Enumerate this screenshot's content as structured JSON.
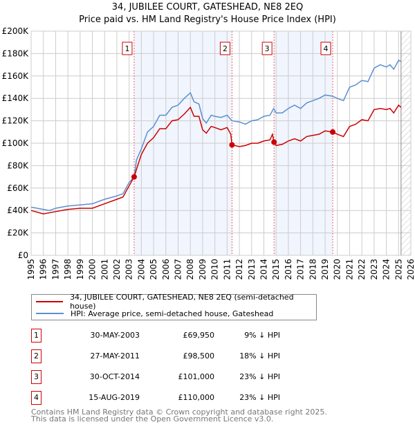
{
  "chart_data": {
    "type": "line",
    "title": "34, JUBILEE COURT, GATESHEAD, NE8 2EQ",
    "subtitle": "Price paid vs. HM Land Registry's House Price Index (HPI)",
    "xlim": [
      1995,
      2026
    ],
    "ylim": [
      0,
      200000
    ],
    "yticks": [
      0,
      20000,
      40000,
      60000,
      80000,
      100000,
      120000,
      140000,
      160000,
      180000,
      200000
    ],
    "ytick_labels": [
      "£0",
      "£20K",
      "£40K",
      "£60K",
      "£80K",
      "£100K",
      "£120K",
      "£140K",
      "£160K",
      "£180K",
      "£200K"
    ],
    "xticks": [
      "1995",
      "1996",
      "1997",
      "1998",
      "1999",
      "2000",
      "2001",
      "2002",
      "2003",
      "2004",
      "2005",
      "2006",
      "2007",
      "2008",
      "2009",
      "2010",
      "2011",
      "2012",
      "2013",
      "2014",
      "2015",
      "2016",
      "2017",
      "2018",
      "2019",
      "2020",
      "2021",
      "2022",
      "2023",
      "2024",
      "2025",
      "2026"
    ],
    "grid": true,
    "forecast_from": 2025.2,
    "shaded_ranges": [
      [
        2003.41,
        2011.4
      ],
      [
        2014.83,
        2019.62
      ]
    ],
    "series": [
      {
        "name": "34, JUBILEE COURT, GATESHEAD, NE8 2EQ (semi-detached house)",
        "color": "#cc0000",
        "x": [
          1995,
          1996,
          1997,
          1998,
          1999,
          2000,
          2001,
          2002,
          2002.5,
          2003,
          2003.41,
          2003.7,
          2004,
          2004.5,
          2005,
          2005.5,
          2006,
          2006.5,
          2007,
          2007.5,
          2008,
          2008.3,
          2008.7,
          2009,
          2009.3,
          2009.7,
          2010,
          2010.5,
          2011,
          2011.3,
          2011.4,
          2012,
          2012.5,
          2013,
          2013.5,
          2014,
          2014.5,
          2014.7,
          2014.83,
          2015,
          2015.5,
          2016,
          2016.5,
          2017,
          2017.5,
          2018,
          2018.5,
          2019,
          2019.62,
          2020,
          2020.5,
          2021,
          2021.5,
          2022,
          2022.5,
          2023,
          2023.5,
          2024,
          2024.3,
          2024.6,
          2025,
          2025.2
        ],
        "y": [
          40000,
          37000,
          39000,
          41000,
          42000,
          42000,
          46000,
          50000,
          52000,
          62000,
          69950,
          80000,
          90000,
          100000,
          105000,
          113000,
          113000,
          120000,
          121000,
          126000,
          132000,
          124000,
          124000,
          112000,
          109000,
          115000,
          114000,
          112000,
          114000,
          108000,
          98500,
          97000,
          98000,
          100000,
          100000,
          102000,
          103000,
          108000,
          101000,
          98000,
          99000,
          102000,
          104000,
          102000,
          106000,
          107000,
          108000,
          111000,
          110000,
          108000,
          106000,
          115000,
          117000,
          121000,
          120000,
          130000,
          131000,
          130000,
          131000,
          127000,
          134000,
          132000
        ]
      },
      {
        "name": "HPI: Average price, semi-detached house, Gateshead",
        "color": "#5b8fd0",
        "x": [
          1995,
          1996,
          1996.5,
          1997,
          1998,
          1999,
          2000,
          2001,
          2002,
          2002.5,
          2003,
          2003.41,
          2003.6,
          2004,
          2004.5,
          2005,
          2005.5,
          2006,
          2006.5,
          2007,
          2007.5,
          2008,
          2008.3,
          2008.7,
          2009,
          2009.3,
          2009.7,
          2010,
          2010.5,
          2011,
          2011.4,
          2012,
          2012.5,
          2013,
          2013.5,
          2014,
          2014.5,
          2014.8,
          2015,
          2015.5,
          2016,
          2016.5,
          2017,
          2017.5,
          2018,
          2018.5,
          2019,
          2019.6,
          2020,
          2020.5,
          2021,
          2021.5,
          2022,
          2022.5,
          2023,
          2023.5,
          2024,
          2024.3,
          2024.6,
          2025,
          2025.2
        ],
        "y": [
          43000,
          41000,
          40000,
          42000,
          44000,
          45000,
          46000,
          50000,
          53000,
          55000,
          65000,
          70000,
          85000,
          95000,
          110000,
          115000,
          125000,
          125000,
          132000,
          134000,
          140000,
          145000,
          137000,
          135000,
          122000,
          118000,
          125000,
          124000,
          123000,
          125000,
          120000,
          119000,
          117000,
          120000,
          121000,
          124000,
          125000,
          131000,
          127000,
          127000,
          131000,
          134000,
          131000,
          136000,
          138000,
          140000,
          143000,
          142000,
          140000,
          138000,
          150000,
          152000,
          156000,
          155000,
          167000,
          170000,
          168000,
          170000,
          166000,
          174000,
          173000
        ]
      }
    ],
    "sales": [
      {
        "n": "1",
        "x": 2003.41,
        "y": 69950
      },
      {
        "n": "2",
        "x": 2011.4,
        "y": 98500
      },
      {
        "n": "3",
        "x": 2014.83,
        "y": 101000
      },
      {
        "n": "4",
        "x": 2019.62,
        "y": 110000
      }
    ]
  },
  "legend": {
    "red": "34, JUBILEE COURT, GATESHEAD, NE8 2EQ (semi-detached house)",
    "blue": "HPI: Average price, semi-detached house, Gateshead"
  },
  "transactions": [
    {
      "n": "1",
      "date": "30-MAY-2003",
      "price": "£69,950",
      "hpi": "9% ↓ HPI"
    },
    {
      "n": "2",
      "date": "27-MAY-2011",
      "price": "£98,500",
      "hpi": "18% ↓ HPI"
    },
    {
      "n": "3",
      "date": "30-OCT-2014",
      "price": "£101,000",
      "hpi": "23% ↓ HPI"
    },
    {
      "n": "4",
      "date": "15-AUG-2019",
      "price": "£110,000",
      "hpi": "23% ↓ HPI"
    }
  ],
  "footer": {
    "line1": "Contains HM Land Registry data © Crown copyright and database right 2025.",
    "line2": "This data is licensed under the Open Government Licence v3.0."
  }
}
